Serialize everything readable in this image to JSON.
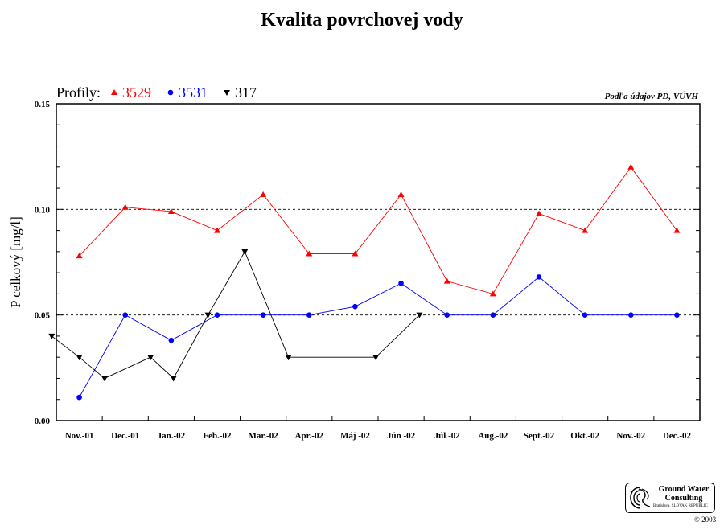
{
  "title": "Kvalita povrchovej vody",
  "credit": "Podľa údajov PD, VÚVH",
  "chart_data": {
    "type": "line",
    "ylabel": "P celkový [mg/l]",
    "xlabel": "",
    "ylim": [
      0,
      0.15
    ],
    "y_ticks": [
      "0.00",
      "0.05",
      "0.10",
      "0.15"
    ],
    "gridlines": [
      0.05,
      0.1
    ],
    "legend_title": "Profily:",
    "legend_position": "top-left",
    "categories": [
      "Nov.-01",
      "Dec.-01",
      "Jan.-02",
      "Feb.-02",
      "Mar.-02",
      "Apr.-02",
      "Máj -02",
      "Jún -02",
      "Júl -02",
      "Aug.-02",
      "Sept.-02",
      "Okt.-02",
      "Nov.-02",
      "Dec.-02"
    ],
    "series": [
      {
        "name": "3529",
        "color": "#ff0000",
        "marker": "triangle-up",
        "points": [
          [
            0,
            0.078
          ],
          [
            1,
            0.101
          ],
          [
            2,
            0.099
          ],
          [
            3,
            0.09
          ],
          [
            4,
            0.107
          ],
          [
            5,
            0.079
          ],
          [
            6,
            0.079
          ],
          [
            7,
            0.107
          ],
          [
            8,
            0.066
          ],
          [
            9,
            0.06
          ],
          [
            10,
            0.098
          ],
          [
            11,
            0.09
          ],
          [
            12,
            0.12
          ],
          [
            13,
            0.09
          ]
        ]
      },
      {
        "name": "3531",
        "color": "#0000ff",
        "marker": "circle",
        "points": [
          [
            0,
            0.011
          ],
          [
            1,
            0.05
          ],
          [
            2,
            0.038
          ],
          [
            3,
            0.05
          ],
          [
            4,
            0.05
          ],
          [
            5,
            0.05
          ],
          [
            6,
            0.054
          ],
          [
            7,
            0.065
          ],
          [
            8,
            0.05
          ],
          [
            9,
            0.05
          ],
          [
            10,
            0.068
          ],
          [
            11,
            0.05
          ],
          [
            12,
            0.05
          ],
          [
            13,
            0.05
          ]
        ]
      },
      {
        "name": "317",
        "color": "#000000",
        "marker": "triangle-down",
        "points": [
          [
            -0.6,
            0.04
          ],
          [
            0,
            0.03
          ],
          [
            0.55,
            0.02
          ],
          [
            1.55,
            0.03
          ],
          [
            2.05,
            0.02
          ],
          [
            2.8,
            0.05
          ],
          [
            3.6,
            0.08
          ],
          [
            4.55,
            0.03
          ],
          [
            6.45,
            0.03
          ],
          [
            7.4,
            0.05
          ]
        ]
      }
    ]
  },
  "logo": {
    "name_line1": "Ground Water",
    "name_line2": "Consulting",
    "sub": "Bratislava, SLOVAK REPUBLIC",
    "copyright": "© 2003"
  }
}
